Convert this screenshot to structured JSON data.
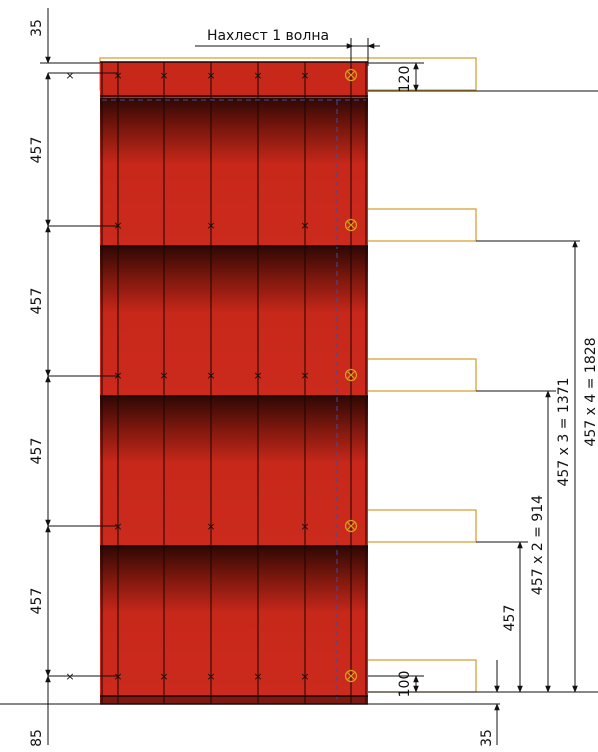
{
  "title_overlap": "Нахлест 1 волна",
  "dimensions": {
    "top_offset": "35",
    "bottom_offset_left": "85",
    "bottom_offset_right": "35",
    "row_pitch": "457",
    "top_row_band": "120",
    "bottom_row_band": "100",
    "cumulative": {
      "r1": "457",
      "r2": "457 x 2 = 914",
      "r3": "457 x 3 = 1371",
      "r4": "457 x 4 = 1828"
    }
  },
  "colors": {
    "sheet": "#c8281a",
    "sheet_dark": "#3a0a06",
    "line": "#111111",
    "batten": "#d49a2a",
    "screw": "#d4a21e",
    "dashed": "#3a4ea0"
  },
  "screw_marker_symbol": "×",
  "overlap_screw_symbol": "⊗"
}
